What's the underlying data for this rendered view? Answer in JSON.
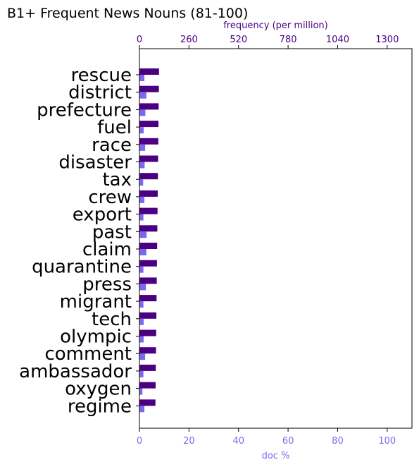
{
  "chart_data": {
    "type": "bar",
    "orientation": "horizontal",
    "title": "B1+ Frequent News Nouns (81-100)",
    "categories": [
      "rescue",
      "district",
      "prefecture",
      "fuel",
      "race",
      "disaster",
      "tax",
      "crew",
      "export",
      "past",
      "claim",
      "quarantine",
      "press",
      "migrant",
      "tech",
      "olympic",
      "comment",
      "ambassador",
      "oxygen",
      "regime"
    ],
    "series": [
      {
        "axis": "top",
        "color": "#4b0082",
        "values": [
          103,
          102,
          101,
          100,
          99,
          98,
          97,
          96,
          95,
          94,
          93,
          92,
          91,
          90,
          89,
          88,
          87,
          86,
          85,
          84
        ]
      },
      {
        "axis": "bottom",
        "color": "#7b68ee",
        "values": [
          2.0,
          2.8,
          2.4,
          1.7,
          2.3,
          2.1,
          1.5,
          2.0,
          1.6,
          2.9,
          2.8,
          1.6,
          2.6,
          1.6,
          1.7,
          1.7,
          2.3,
          1.6,
          1.2,
          2.0
        ]
      }
    ],
    "top_axis": {
      "label": "frequency (per million)",
      "ticks": [
        0,
        260,
        520,
        780,
        1040,
        1300
      ],
      "range": [
        0,
        1430
      ]
    },
    "bottom_axis": {
      "label": "doc %",
      "ticks": [
        0,
        20,
        40,
        60,
        80,
        100
      ],
      "range": [
        0,
        110
      ]
    },
    "grid": false,
    "legend": "none"
  }
}
